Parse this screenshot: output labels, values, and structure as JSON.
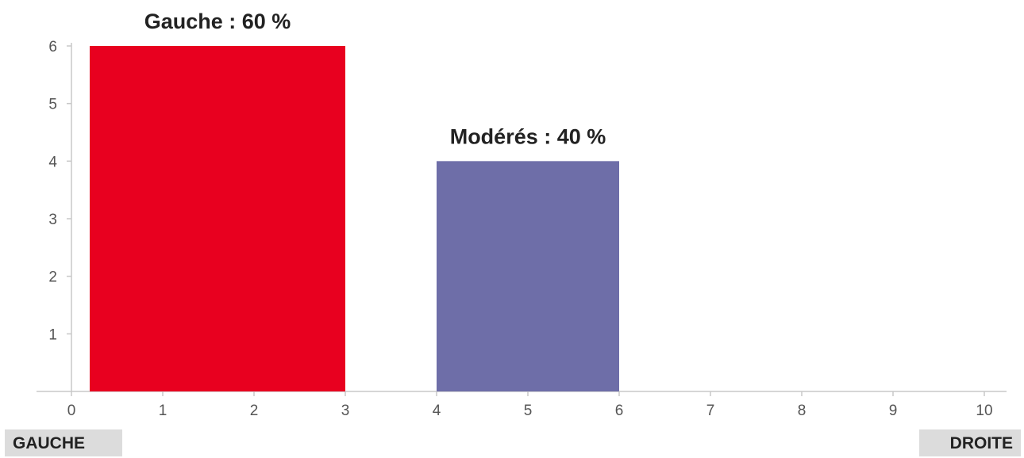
{
  "chart_data": {
    "type": "bar",
    "x_range": [
      0,
      10
    ],
    "y_range": [
      0,
      6
    ],
    "x_ticks": [
      0,
      1,
      2,
      3,
      4,
      5,
      6,
      7,
      8,
      9,
      10
    ],
    "y_ticks": [
      1,
      2,
      3,
      4,
      5,
      6
    ],
    "bars": [
      {
        "label": "Gauche : 60 %",
        "x_start": 0.2,
        "x_end": 3,
        "value": 6,
        "color": "#e8001f"
      },
      {
        "label": "Modérés : 40 %",
        "x_start": 4,
        "x_end": 6,
        "value": 4,
        "color": "#6e6ea8"
      }
    ],
    "axis_end_labels": {
      "left": "GAUCHE",
      "right": "DROITE"
    },
    "grid": false
  }
}
